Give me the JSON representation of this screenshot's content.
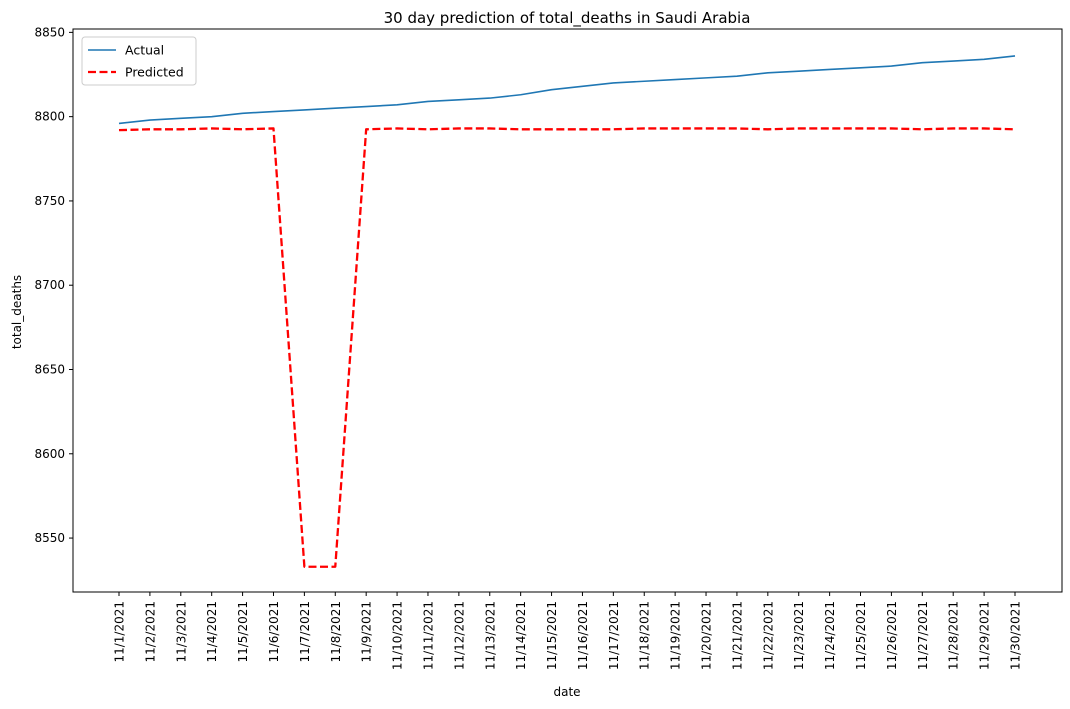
{
  "chart_data": {
    "type": "line",
    "title": "30 day prediction of total_deaths in Saudi Arabia",
    "xlabel": "date",
    "ylabel": "total_deaths",
    "ylim": [
      8518,
      8852
    ],
    "yticks": [
      8550,
      8600,
      8650,
      8700,
      8750,
      8800,
      8850
    ],
    "legend_position": "top-left",
    "categories": [
      "11/1/2021",
      "11/2/2021",
      "11/3/2021",
      "11/4/2021",
      "11/5/2021",
      "11/6/2021",
      "11/7/2021",
      "11/8/2021",
      "11/9/2021",
      "11/10/2021",
      "11/11/2021",
      "11/12/2021",
      "11/13/2021",
      "11/14/2021",
      "11/15/2021",
      "11/16/2021",
      "11/17/2021",
      "11/18/2021",
      "11/19/2021",
      "11/20/2021",
      "11/21/2021",
      "11/22/2021",
      "11/23/2021",
      "11/24/2021",
      "11/25/2021",
      "11/26/2021",
      "11/27/2021",
      "11/28/2021",
      "11/29/2021",
      "11/30/2021"
    ],
    "series": [
      {
        "name": "Actual",
        "color": "#1f77b4",
        "style": "solid",
        "values": [
          8796,
          8798,
          8799,
          8800,
          8802,
          8803,
          8804,
          8805,
          8806,
          8807,
          8809,
          8810,
          8811,
          8813,
          8816,
          8818,
          8820,
          8821,
          8822,
          8823,
          8824,
          8826,
          8827,
          8828,
          8829,
          8830,
          8832,
          8833,
          8834,
          8836
        ]
      },
      {
        "name": "Predicted",
        "color": "#ff0000",
        "style": "dashed",
        "values": [
          8792,
          8792.5,
          8792.5,
          8793,
          8792.5,
          8793,
          8533,
          8533,
          8792.5,
          8793,
          8792.5,
          8793,
          8793,
          8792.5,
          8792.5,
          8792.5,
          8792.5,
          8793,
          8793,
          8793,
          8793,
          8792.5,
          8793,
          8793,
          8793,
          8793,
          8792.5,
          8793,
          8793,
          8792.5
        ]
      }
    ]
  }
}
